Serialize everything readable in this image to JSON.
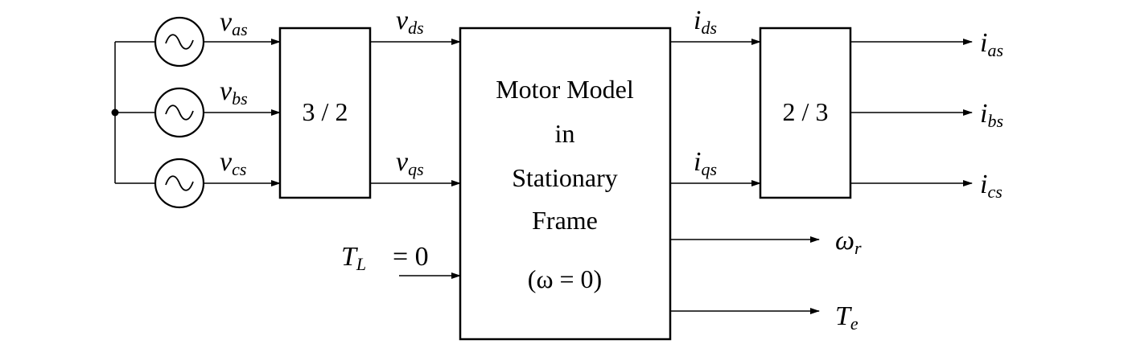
{
  "sources": {
    "a": {
      "label": "v",
      "sub": "as"
    },
    "b": {
      "label": "v",
      "sub": "bs"
    },
    "c": {
      "label": "v",
      "sub": "cs"
    }
  },
  "transform_3_2": {
    "label": "3 / 2"
  },
  "transform_2_3": {
    "label": "2 / 3"
  },
  "motor_model": {
    "line1": "Motor Model",
    "line2": "in",
    "line3": "Stationary",
    "line4": "Frame",
    "line5": "(ω = 0)"
  },
  "signals": {
    "vds": {
      "label": "v",
      "sub": "ds"
    },
    "vqs": {
      "label": "v",
      "sub": "qs"
    },
    "ids": {
      "label": "i",
      "sub": "ds"
    },
    "iqs": {
      "label": "i",
      "sub": "qs"
    },
    "ias": {
      "label": "i",
      "sub": "as"
    },
    "ibs": {
      "label": "i",
      "sub": "bs"
    },
    "ics": {
      "label": "i",
      "sub": "cs"
    },
    "wr": {
      "label": "ω",
      "sub": "r"
    },
    "te": {
      "label": "T",
      "sub": "e"
    },
    "tl": {
      "label": "T",
      "sub": "L",
      "value": "= 0"
    }
  }
}
